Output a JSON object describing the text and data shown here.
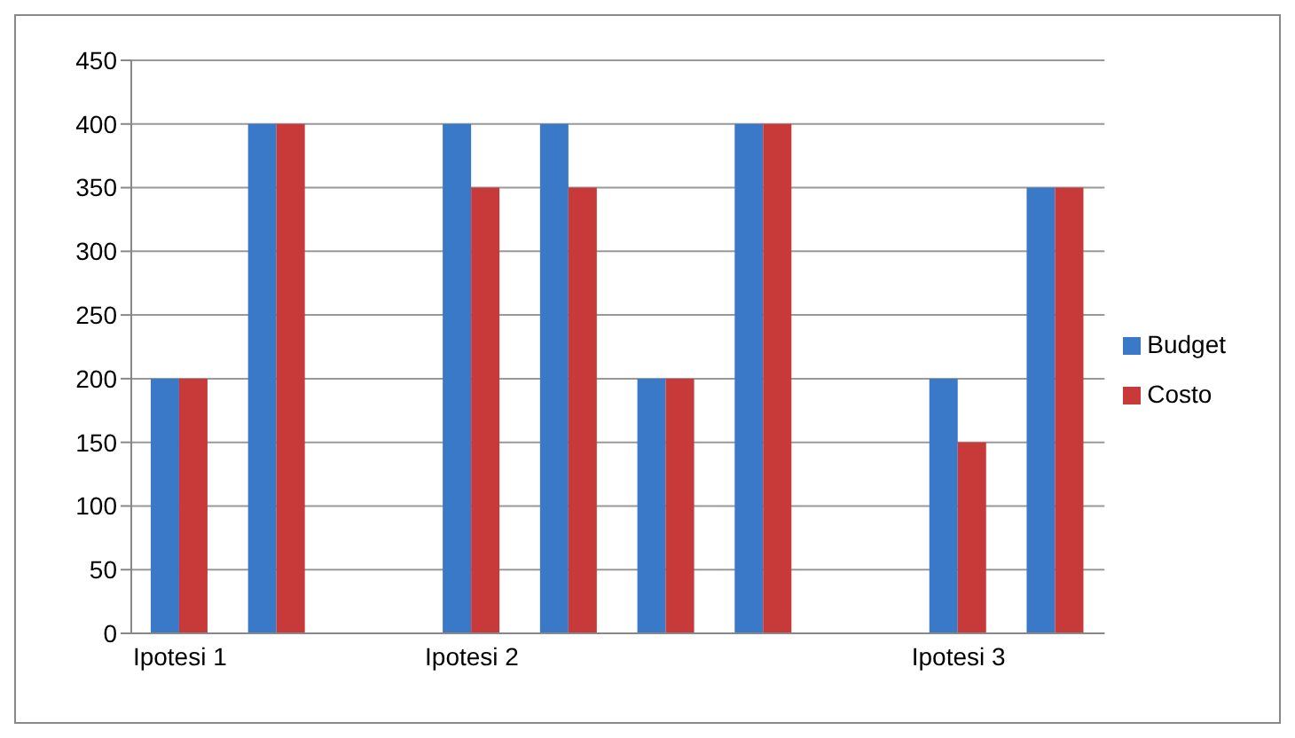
{
  "chart_data": {
    "type": "bar",
    "categories": [
      "Ipotesi 1",
      null,
      null,
      "Ipotesi 2",
      null,
      null,
      null,
      null,
      "Ipotesi 3",
      null
    ],
    "series": [
      {
        "name": "Budget",
        "color": "#3a78c8",
        "values": [
          200,
          400,
          null,
          400,
          400,
          200,
          400,
          null,
          200,
          350
        ]
      },
      {
        "name": "Costo",
        "color": "#c83a3a",
        "values": [
          200,
          400,
          null,
          350,
          350,
          200,
          400,
          null,
          150,
          350
        ]
      }
    ],
    "ylim": [
      0,
      450
    ],
    "yticks": [
      0,
      50,
      100,
      150,
      200,
      250,
      300,
      350,
      400,
      450
    ],
    "grid": "y",
    "legend": "right"
  }
}
